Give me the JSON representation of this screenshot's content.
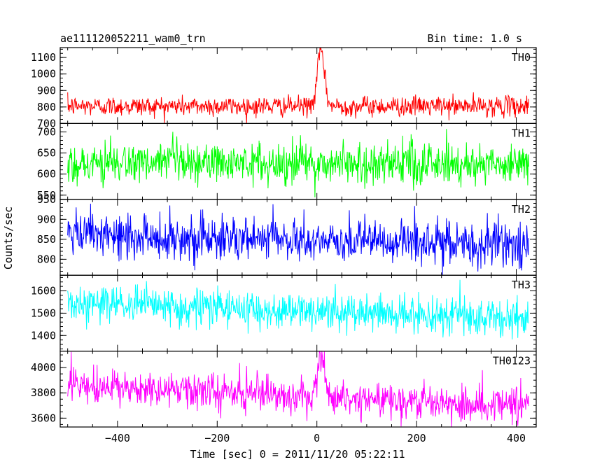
{
  "header": {
    "left_title": "ae111120052211_wam0_trn",
    "right_title": "Bin time: 1.0 s"
  },
  "axes": {
    "ylabel": "Counts/sec",
    "xlabel": "Time [sec] 0 = 2011/11/20 05:22:11"
  },
  "chart_data": {
    "type": "line",
    "x": {
      "range": [
        -515,
        440
      ],
      "data_range": [
        -500,
        425
      ],
      "bin_size": 1.0,
      "ticks": [
        -400,
        -200,
        0,
        200,
        400
      ],
      "tick_labels": [
        "−400",
        "−200",
        "0",
        "200",
        "400"
      ],
      "minor_step": 50
    },
    "grid": false,
    "panels": [
      {
        "name": "TH0",
        "color": "#ff0000",
        "ylim": [
          700,
          1160
        ],
        "yticks": [
          700,
          800,
          900,
          1000,
          1100
        ],
        "yminor": 25,
        "baseline": 805,
        "trend": 0,
        "noise": 30,
        "peak": {
          "t": 8,
          "height": 340,
          "width": 7
        }
      },
      {
        "name": "TH1",
        "color": "#00ff00",
        "ylim": [
          540,
          720
        ],
        "yticks": [
          550,
          600,
          650,
          700
        ],
        "yminor": 10,
        "baseline": 625,
        "trend": 0,
        "noise": 25,
        "peak": null
      },
      {
        "name": "TH2",
        "color": "#0000ff",
        "ylim": [
          760,
          950
        ],
        "yticks": [
          800,
          850,
          900,
          950
        ],
        "yminor": 10,
        "baseline": 860,
        "trend": -25,
        "noise": 28,
        "peak": null
      },
      {
        "name": "TH3",
        "color": "#00ffff",
        "ylim": [
          1330,
          1670
        ],
        "yticks": [
          1400,
          1500,
          1600
        ],
        "yminor": 20,
        "baseline": 1545,
        "trend": -70,
        "noise": 42,
        "peak": null
      },
      {
        "name": "TH0123",
        "color": "#ff00ff",
        "ylim": [
          3530,
          4130
        ],
        "yticks": [
          3600,
          3800,
          4000
        ],
        "yminor": 50,
        "baseline": 3850,
        "trend": -150,
        "noise": 70,
        "peak": {
          "t": 8,
          "height": 320,
          "width": 8
        }
      }
    ]
  }
}
